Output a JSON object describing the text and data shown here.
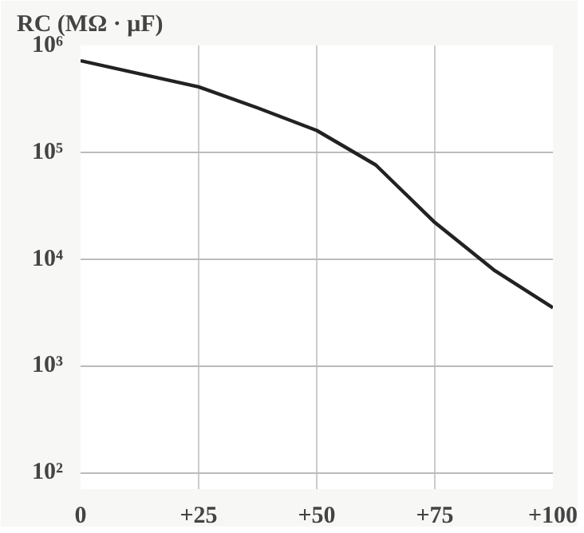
{
  "chart_data": {
    "type": "line",
    "ylabel": "RC (MΩ · μF)",
    "x": [
      0,
      25,
      37.5,
      50,
      62.5,
      75,
      87.5,
      100
    ],
    "series": [
      {
        "color": "#222222",
        "values": [
          720000,
          410000,
          260000,
          160000,
          76000,
          22000,
          7900,
          3500
        ]
      }
    ],
    "log": "y",
    "xlim": [
      0,
      100
    ],
    "xticks": [
      {
        "value": 0,
        "label": "0"
      },
      {
        "value": 25,
        "label": "+25"
      },
      {
        "value": 50,
        "label": "+50"
      },
      {
        "value": 75,
        "label": "+75"
      },
      {
        "value": 100,
        "label": "+100"
      }
    ],
    "ylim": [
      70,
      1000000
    ],
    "yticks": [
      {
        "value": 100,
        "label": "10²"
      },
      {
        "value": 1000,
        "label": "10³"
      },
      {
        "value": 10000,
        "label": "10⁴"
      },
      {
        "value": 100000,
        "label": "10⁵"
      },
      {
        "value": 1000000,
        "label": "10⁶"
      }
    ],
    "grid": true,
    "line_style": "solid"
  }
}
